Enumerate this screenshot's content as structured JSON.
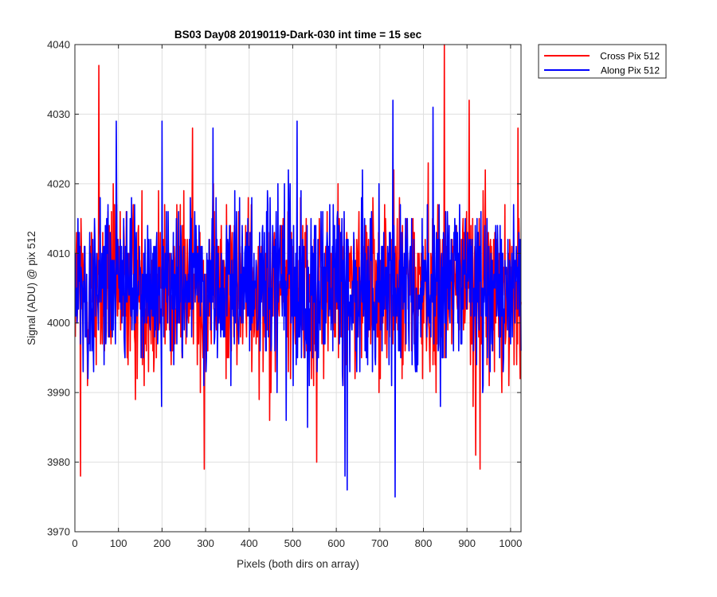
{
  "chart_data": {
    "type": "line",
    "title": "BS03 Day08 20190119-Dark-030 int time = 15 sec",
    "xlabel": "Pixels (both dirs on array)",
    "ylabel": "Signal (ADU) @ pix 512",
    "xlim": [
      0,
      1024
    ],
    "ylim": [
      3970,
      4040
    ],
    "x_ticks": [
      "0",
      "100",
      "200",
      "300",
      "400",
      "500",
      "600",
      "700",
      "800",
      "900",
      "1000"
    ],
    "y_ticks": [
      "3970",
      "3980",
      "3990",
      "4000",
      "4010",
      "4020",
      "4030",
      "4040"
    ],
    "grid": true,
    "legend_position": "outside top-right",
    "x": "pixel index 1..1024",
    "series": [
      {
        "name": "Cross Pix 512",
        "color": "#ff0000",
        "approx_mean": 4005,
        "approx_range": [
          3978,
          4040
        ],
        "notable_points": [
          {
            "x": 13,
            "y": 3978
          },
          {
            "x": 55,
            "y": 4037
          },
          {
            "x": 270,
            "y": 4028
          },
          {
            "x": 297,
            "y": 3979
          },
          {
            "x": 555,
            "y": 3980
          },
          {
            "x": 848,
            "y": 4040
          },
          {
            "x": 905,
            "y": 4032
          },
          {
            "x": 920,
            "y": 3981
          },
          {
            "x": 930,
            "y": 3979
          },
          {
            "x": 1017,
            "y": 4028
          }
        ]
      },
      {
        "name": "Along Pix 512",
        "color": "#0000ff",
        "approx_mean": 4005,
        "approx_range": [
          3975,
          4033
        ],
        "notable_points": [
          {
            "x": 95,
            "y": 4029
          },
          {
            "x": 200,
            "y": 4029
          },
          {
            "x": 317,
            "y": 4028
          },
          {
            "x": 510,
            "y": 4029
          },
          {
            "x": 620,
            "y": 3978
          },
          {
            "x": 625,
            "y": 3976
          },
          {
            "x": 730,
            "y": 4032
          },
          {
            "x": 735,
            "y": 3975
          },
          {
            "x": 822,
            "y": 4031
          }
        ]
      }
    ]
  }
}
